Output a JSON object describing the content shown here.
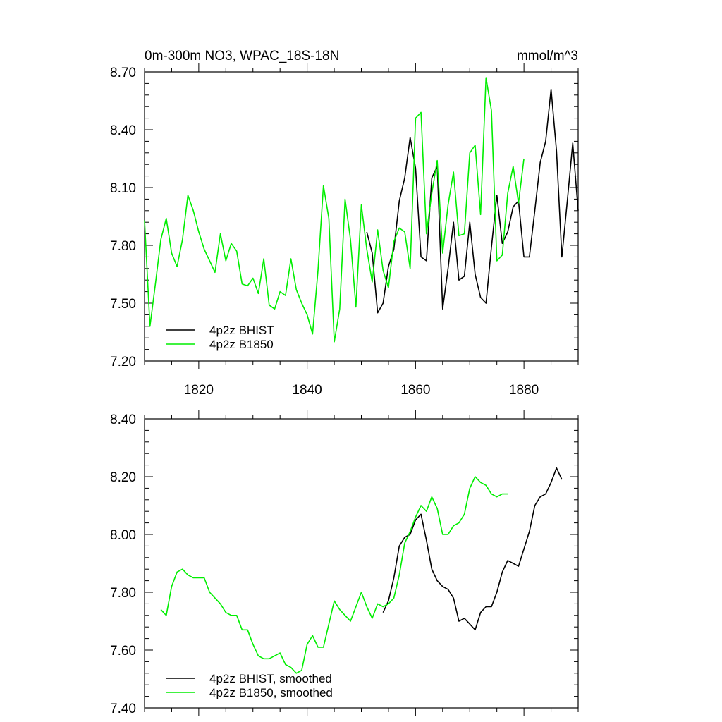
{
  "chart_data": [
    {
      "type": "line",
      "title_left": "0m-300m NO3, WPAC_18S-18N",
      "title_right": "mmol/m^3",
      "xlim": [
        1810,
        1890
      ],
      "ylim": [
        7.2,
        8.7
      ],
      "xticks": [
        1820,
        1840,
        1860,
        1880
      ],
      "xtick_labels": [
        "1820",
        "1840",
        "1860",
        "1880"
      ],
      "yticks": [
        7.2,
        7.5,
        7.8,
        8.1,
        8.4,
        8.7
      ],
      "ytick_labels": [
        "7.20",
        "7.50",
        "7.80",
        "8.10",
        "8.40",
        "8.70"
      ],
      "legend_position": "bottom-left",
      "series": [
        {
          "name": "4p2z BHIST",
          "color": "#000000",
          "x": [
            1851,
            1852,
            1853,
            1854,
            1855,
            1856,
            1857,
            1858,
            1859,
            1860,
            1861,
            1862,
            1863,
            1864,
            1865,
            1866,
            1867,
            1868,
            1869,
            1870,
            1871,
            1872,
            1873,
            1874,
            1875,
            1876,
            1877,
            1878,
            1879,
            1880,
            1881,
            1882,
            1883,
            1884,
            1885,
            1886,
            1887,
            1888,
            1889,
            1890
          ],
          "y": [
            7.87,
            7.76,
            7.45,
            7.5,
            7.69,
            7.78,
            8.03,
            8.15,
            8.36,
            8.2,
            7.74,
            7.72,
            8.15,
            8.21,
            7.47,
            7.68,
            7.92,
            7.62,
            7.64,
            7.92,
            7.65,
            7.53,
            7.5,
            7.79,
            8.06,
            7.81,
            7.87,
            8.0,
            8.03,
            7.74,
            7.74,
            7.98,
            8.23,
            8.34,
            8.61,
            8.29,
            7.74,
            8.03,
            8.33,
            7.98
          ]
        },
        {
          "name": "4p2z B1850",
          "color": "#00ee00",
          "x": [
            1810,
            1811,
            1812,
            1813,
            1814,
            1815,
            1816,
            1817,
            1818,
            1819,
            1820,
            1821,
            1822,
            1823,
            1824,
            1825,
            1826,
            1827,
            1828,
            1829,
            1830,
            1831,
            1832,
            1833,
            1834,
            1835,
            1836,
            1837,
            1838,
            1839,
            1840,
            1841,
            1842,
            1843,
            1844,
            1845,
            1846,
            1847,
            1848,
            1849,
            1850,
            1851,
            1852,
            1853,
            1854,
            1855,
            1856,
            1857,
            1858,
            1859,
            1860,
            1861,
            1862,
            1863,
            1864,
            1865,
            1866,
            1867,
            1868,
            1869,
            1870,
            1871,
            1872,
            1873,
            1874,
            1875,
            1876,
            1877,
            1878,
            1879,
            1880
          ],
          "y": [
            7.93,
            7.38,
            7.6,
            7.83,
            7.94,
            7.76,
            7.69,
            7.83,
            8.06,
            7.98,
            7.87,
            7.78,
            7.72,
            7.66,
            7.86,
            7.72,
            7.81,
            7.77,
            7.6,
            7.59,
            7.63,
            7.55,
            7.73,
            7.49,
            7.47,
            7.56,
            7.54,
            7.73,
            7.57,
            7.5,
            7.44,
            7.34,
            7.67,
            8.11,
            7.94,
            7.3,
            7.47,
            8.04,
            7.83,
            7.48,
            8.01,
            7.78,
            7.61,
            7.88,
            7.67,
            7.58,
            7.82,
            7.89,
            7.87,
            7.68,
            8.46,
            8.49,
            7.86,
            8.07,
            8.24,
            7.76,
            8.01,
            8.18,
            7.85,
            7.86,
            8.28,
            8.32,
            7.96,
            8.67,
            8.5,
            7.72,
            7.75,
            8.07,
            8.21,
            8.02,
            8.25
          ]
        }
      ]
    },
    {
      "type": "line",
      "xlim": [
        1810,
        1890
      ],
      "ylim": [
        7.4,
        8.4
      ],
      "xticks": [
        1820,
        1840,
        1860,
        1880
      ],
      "yticks": [
        7.4,
        7.6,
        7.8,
        8.0,
        8.2,
        8.4
      ],
      "ytick_labels": [
        "7.40",
        "7.60",
        "7.80",
        "8.00",
        "8.20",
        "8.40"
      ],
      "legend_position": "bottom-left",
      "series": [
        {
          "name": "4p2z BHIST, smoothed",
          "color": "#000000",
          "x": [
            1854,
            1855,
            1856,
            1857,
            1858,
            1859,
            1860,
            1861,
            1862,
            1863,
            1864,
            1865,
            1866,
            1867,
            1868,
            1869,
            1870,
            1871,
            1872,
            1873,
            1874,
            1875,
            1876,
            1877,
            1878,
            1879,
            1880,
            1881,
            1882,
            1883,
            1884,
            1885,
            1886,
            1887
          ],
          "y": [
            7.73,
            7.77,
            7.85,
            7.96,
            7.99,
            8.0,
            8.05,
            8.07,
            7.98,
            7.88,
            7.84,
            7.82,
            7.81,
            7.78,
            7.7,
            7.71,
            7.69,
            7.67,
            7.73,
            7.75,
            7.75,
            7.8,
            7.87,
            7.91,
            7.9,
            7.89,
            7.95,
            8.01,
            8.1,
            8.13,
            8.14,
            8.18,
            8.23,
            8.19
          ]
        },
        {
          "name": "4p2z B1850, smoothed",
          "color": "#00ee00",
          "x": [
            1813,
            1814,
            1815,
            1816,
            1817,
            1818,
            1819,
            1820,
            1821,
            1822,
            1823,
            1824,
            1825,
            1826,
            1827,
            1828,
            1829,
            1830,
            1831,
            1832,
            1833,
            1834,
            1835,
            1836,
            1837,
            1838,
            1839,
            1840,
            1841,
            1842,
            1843,
            1844,
            1845,
            1846,
            1847,
            1848,
            1849,
            1850,
            1851,
            1852,
            1853,
            1854,
            1855,
            1856,
            1857,
            1858,
            1859,
            1860,
            1861,
            1862,
            1863,
            1864,
            1865,
            1866,
            1867,
            1868,
            1869,
            1870,
            1871,
            1872,
            1873,
            1874,
            1875,
            1876,
            1877
          ],
          "y": [
            7.74,
            7.72,
            7.82,
            7.87,
            7.88,
            7.86,
            7.85,
            7.85,
            7.85,
            7.8,
            7.78,
            7.76,
            7.73,
            7.72,
            7.72,
            7.67,
            7.67,
            7.62,
            7.58,
            7.57,
            7.57,
            7.58,
            7.59,
            7.55,
            7.54,
            7.52,
            7.53,
            7.62,
            7.65,
            7.61,
            7.61,
            7.69,
            7.77,
            7.74,
            7.72,
            7.7,
            7.75,
            7.8,
            7.75,
            7.71,
            7.76,
            7.75,
            7.76,
            7.78,
            7.86,
            7.97,
            8.01,
            8.06,
            8.1,
            8.08,
            8.13,
            8.09,
            8.0,
            8.0,
            8.03,
            8.04,
            8.07,
            8.16,
            8.2,
            8.18,
            8.17,
            8.14,
            8.13,
            8.14,
            8.14
          ]
        }
      ]
    }
  ]
}
